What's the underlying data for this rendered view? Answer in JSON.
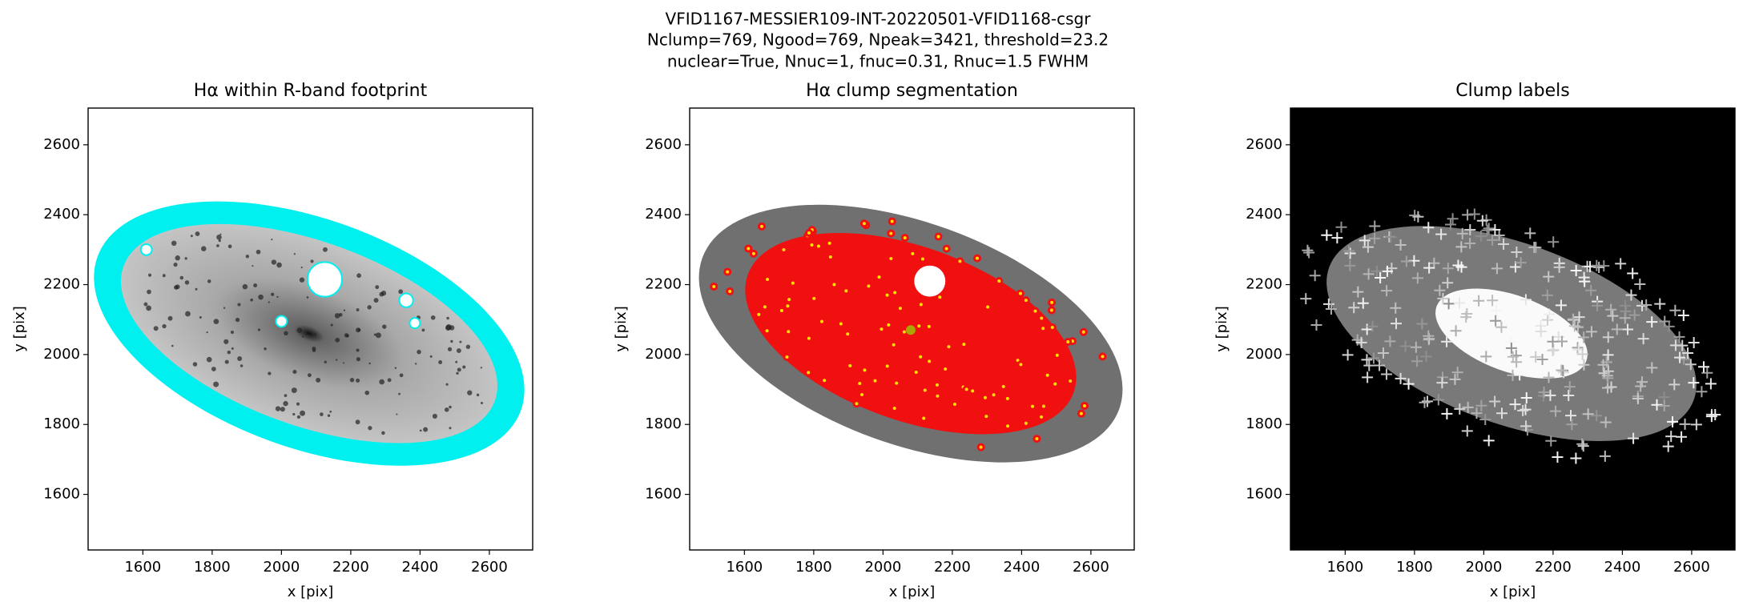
{
  "title": [
    "VFID1167-MESSIER109-INT-20220501-VFID1168-csgr",
    "Nclump=769, Ngood=769, Npeak=3421, threshold=23.2",
    "nuclear=True, Nnuc=1, fnuc=0.31, Rnuc=1.5 FWHM"
  ],
  "chart_data": [
    {
      "type": "image",
      "title": "Hα within R-band footprint",
      "xlabel": "x [pix]",
      "ylabel": "y [pix]",
      "xlim": [
        1442,
        2725
      ],
      "ylim": [
        1441,
        2705
      ],
      "xticks": [
        1600,
        1800,
        2000,
        2200,
        2400,
        2600
      ],
      "yticks": [
        1600,
        1800,
        2000,
        2200,
        2400,
        2600
      ]
    },
    {
      "type": "image",
      "title": "Hα clump segmentation",
      "xlabel": "x [pix]",
      "ylabel": "y [pix]",
      "xlim": [
        1442,
        2725
      ],
      "ylim": [
        1441,
        2705
      ],
      "xticks": [
        1600,
        1800,
        2000,
        2200,
        2400,
        2600
      ],
      "yticks": [
        1600,
        1800,
        2000,
        2200,
        2400,
        2600
      ]
    },
    {
      "type": "image",
      "title": "Clump labels",
      "xlabel": "x [pix]",
      "ylabel": "y [pix]",
      "xlim": [
        1442,
        2725
      ],
      "ylim": [
        1441,
        2705
      ],
      "xticks": [
        1600,
        1800,
        2000,
        2200,
        2400,
        2600
      ],
      "yticks": [
        1600,
        1800,
        2000,
        2200,
        2400,
        2600
      ]
    }
  ]
}
